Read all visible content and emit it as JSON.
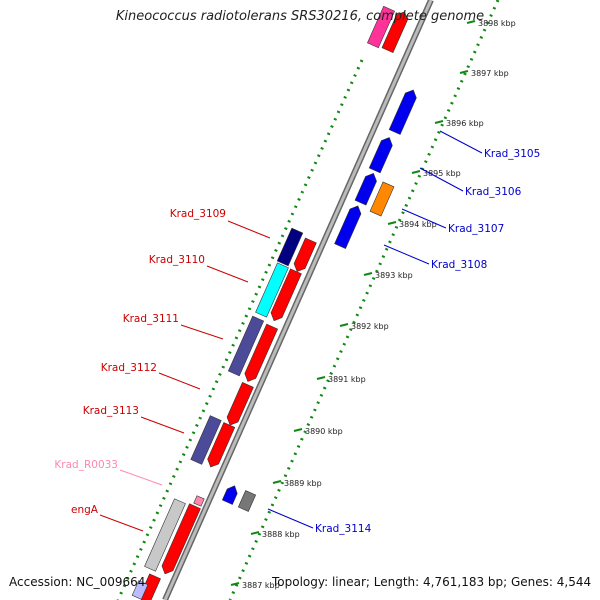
{
  "title": "Kineococcus radiotolerans SRS30216, complete genome",
  "footer": {
    "accession": "Accession: NC_009664",
    "summary": "Topology: linear; Length: 4,761,183 bp; Genes: 4,544"
  },
  "ruler": {
    "unit": "kbp",
    "ticks": [
      "3898 kbp",
      "3897 kbp",
      "3896 kbp",
      "3895 kbp",
      "3894 kbp",
      "3893 kbp",
      "3892 kbp",
      "3891 kbp",
      "3890 kbp",
      "3889 kbp",
      "3888 kbp",
      "3887 kbp"
    ]
  },
  "gene_labels": [
    {
      "name": "Krad_3105",
      "strand": "right",
      "color": "#0000cc"
    },
    {
      "name": "Krad_3106",
      "strand": "right",
      "color": "#0000cc"
    },
    {
      "name": "Krad_3107",
      "strand": "right",
      "color": "#0000cc"
    },
    {
      "name": "Krad_3108",
      "strand": "right",
      "color": "#0000cc"
    },
    {
      "name": "Krad_3114",
      "strand": "right",
      "color": "#0000cc"
    },
    {
      "name": "Krad_3109",
      "strand": "left",
      "color": "#cc0000"
    },
    {
      "name": "Krad_3110",
      "strand": "left",
      "color": "#cc0000"
    },
    {
      "name": "Krad_3111",
      "strand": "left",
      "color": "#cc0000"
    },
    {
      "name": "Krad_3112",
      "strand": "left",
      "color": "#cc0000"
    },
    {
      "name": "Krad_3113",
      "strand": "left",
      "color": "#cc0000"
    },
    {
      "name": "Krad_R0033",
      "strand": "left",
      "color": "#ff88aa"
    },
    {
      "name": "engA",
      "strand": "left",
      "color": "#cc0000"
    }
  ],
  "colors": {
    "cds_forward": "#ff0000",
    "cds_reverse": "#0000ee",
    "backbone": "#999999",
    "ruler_dots": "#118811",
    "label_left": "#cc0000",
    "label_right": "#0000cc",
    "rna": "#ff88aa"
  }
}
